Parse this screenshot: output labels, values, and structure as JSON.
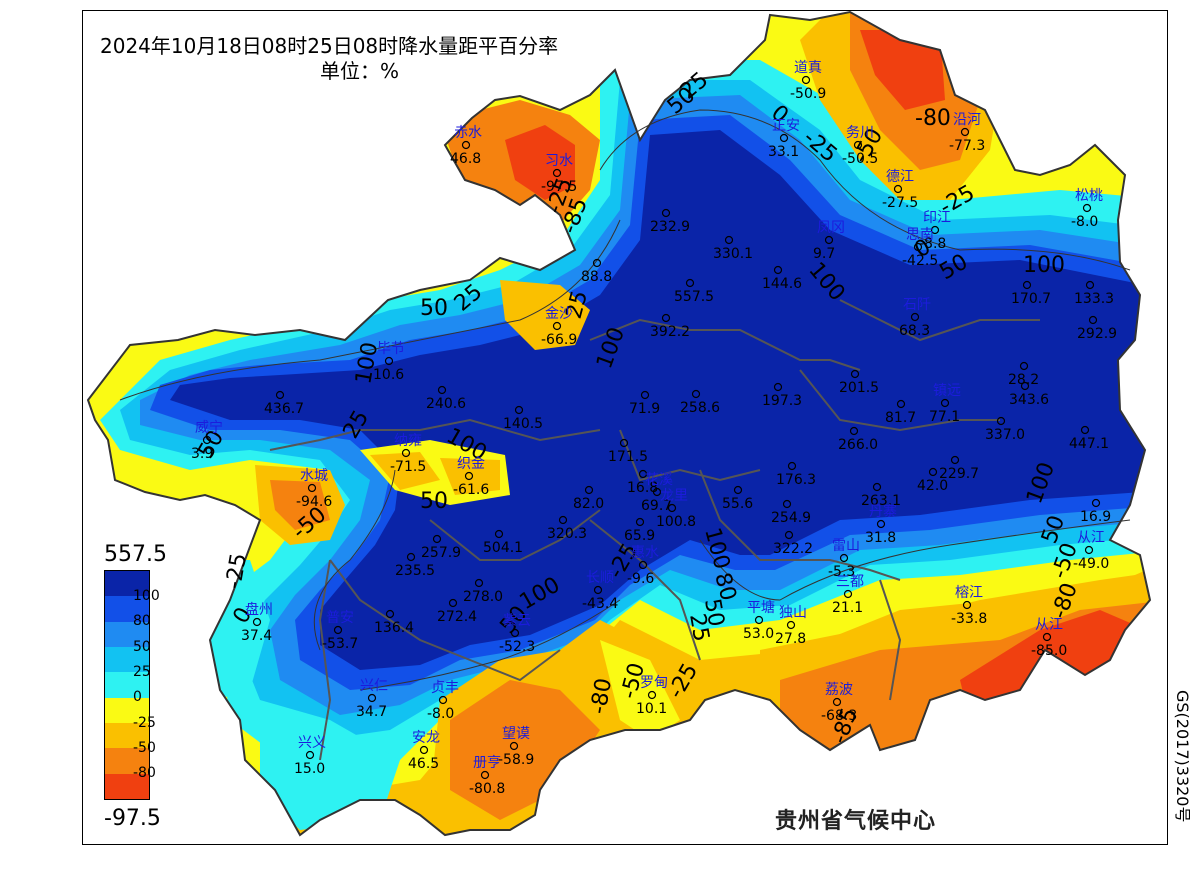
{
  "title": "2024年10月18日08时25日08时降水量距平百分率",
  "unit": "单位：%",
  "credit": "贵州省气候中心",
  "map_number": "GS(2017)3320号",
  "legend": {
    "max": "557.5",
    "min": "-97.5",
    "ticks": [
      "100",
      "80",
      "50",
      "25",
      "0",
      "-25",
      "-50",
      "-80"
    ],
    "colors": [
      "#0a24a8",
      "#1250e8",
      "#1f8bf2",
      "#12c2f2",
      "#2ef2f2",
      "#fafa14",
      "#fac000",
      "#f5820f",
      "#f04010"
    ]
  },
  "contour_labels": [
    "100",
    "50",
    "25",
    "0",
    "-25",
    "-50",
    "-80",
    "-85",
    "80"
  ],
  "stations": [
    {
      "name": "赤水",
      "value": "46.8"
    },
    {
      "name": "习水",
      "value": "-97.5"
    },
    {
      "name": "道真",
      "value": "-50.9"
    },
    {
      "name": "正安",
      "value": "33.1"
    },
    {
      "name": "务川",
      "value": "-50.5"
    },
    {
      "name": "沿河",
      "value": "-77.3"
    },
    {
      "name": "德江",
      "value": "-27.5"
    },
    {
      "name": "印江",
      "value": "-8.8"
    },
    {
      "name": "思南",
      "value": "-42.5"
    },
    {
      "name": "松桃",
      "value": "-8.0"
    },
    {
      "name": "",
      "value": "232.9"
    },
    {
      "name": "",
      "value": "330.1"
    },
    {
      "name": "凤冈",
      "value": "9.7"
    },
    {
      "name": "",
      "value": "88.8"
    },
    {
      "name": "",
      "value": "557.5"
    },
    {
      "name": "",
      "value": "144.6"
    },
    {
      "name": "",
      "value": "170.7"
    },
    {
      "name": "",
      "value": "133.3"
    },
    {
      "name": "金沙",
      "value": "-66.9"
    },
    {
      "name": "",
      "value": "392.2"
    },
    {
      "name": "石阡",
      "value": "68.3"
    },
    {
      "name": "",
      "value": "292.9"
    },
    {
      "name": "毕节",
      "value": "10.6"
    },
    {
      "name": "",
      "value": "436.7"
    },
    {
      "name": "",
      "value": "240.6"
    },
    {
      "name": "",
      "value": "140.5"
    },
    {
      "name": "",
      "value": "71.9"
    },
    {
      "name": "",
      "value": "258.6"
    },
    {
      "name": "",
      "value": "197.3"
    },
    {
      "name": "",
      "value": "201.5"
    },
    {
      "name": "",
      "value": "81.7"
    },
    {
      "name": "镇远",
      "value": "77.1"
    },
    {
      "name": "",
      "value": "343.6"
    },
    {
      "name": "",
      "value": "28.2"
    },
    {
      "name": "威宁",
      "value": "3.9"
    },
    {
      "name": "纳雍",
      "value": "-71.5"
    },
    {
      "name": "织金",
      "value": "-61.6"
    },
    {
      "name": "",
      "value": "171.5"
    },
    {
      "name": "",
      "value": "266.0"
    },
    {
      "name": "",
      "value": "337.0"
    },
    {
      "name": "",
      "value": "447.1"
    },
    {
      "name": "水城",
      "value": "-94.6"
    },
    {
      "name": "",
      "value": "176.3"
    },
    {
      "name": "",
      "value": "229.7"
    },
    {
      "name": "",
      "value": "42.0"
    },
    {
      "name": "",
      "value": "16.8"
    },
    {
      "name": "",
      "value": "82.0"
    },
    {
      "name": "花溪",
      "value": "69.7"
    },
    {
      "name": "龙里",
      "value": "100.8"
    },
    {
      "name": "",
      "value": "55.6"
    },
    {
      "name": "",
      "value": "263.1"
    },
    {
      "name": "",
      "value": "254.9"
    },
    {
      "name": "",
      "value": "16.9"
    },
    {
      "name": "",
      "value": "320.3"
    },
    {
      "name": "",
      "value": "65.9"
    },
    {
      "name": "",
      "value": "504.1"
    },
    {
      "name": "",
      "value": "257.9"
    },
    {
      "name": "",
      "value": "235.5"
    },
    {
      "name": "惠水",
      "value": "-9.6"
    },
    {
      "name": "",
      "value": "322.2"
    },
    {
      "name": "丹寨",
      "value": "31.8"
    },
    {
      "name": "",
      "value": "278.0"
    },
    {
      "name": "长顺",
      "value": "-43.4"
    },
    {
      "name": "雷山",
      "value": "-5.3"
    },
    {
      "name": "从江",
      "value": "-49.0"
    },
    {
      "name": "",
      "value": "272.4"
    },
    {
      "name": "普安",
      "value": "-53.7"
    },
    {
      "name": "",
      "value": "136.4"
    },
    {
      "name": "平塘",
      "value": "53.0"
    },
    {
      "name": "独山",
      "value": "27.8"
    },
    {
      "name": "三都",
      "value": "21.1"
    },
    {
      "name": "榕江",
      "value": "-33.8"
    },
    {
      "name": "盘州",
      "value": "37.4"
    },
    {
      "name": "紫云",
      "value": "-52.3"
    },
    {
      "name": "从江",
      "value": "-85.0"
    },
    {
      "name": "兴仁",
      "value": "34.7"
    },
    {
      "name": "贞丰",
      "value": "-8.0"
    },
    {
      "name": "罗甸",
      "value": "10.1"
    },
    {
      "name": "荔波",
      "value": "-68.3"
    },
    {
      "name": "望谟",
      "value": "-58.9"
    },
    {
      "name": "安龙",
      "value": "46.5"
    },
    {
      "name": "兴义",
      "value": "15.0"
    },
    {
      "name": "册亨",
      "value": "-80.8"
    }
  ]
}
